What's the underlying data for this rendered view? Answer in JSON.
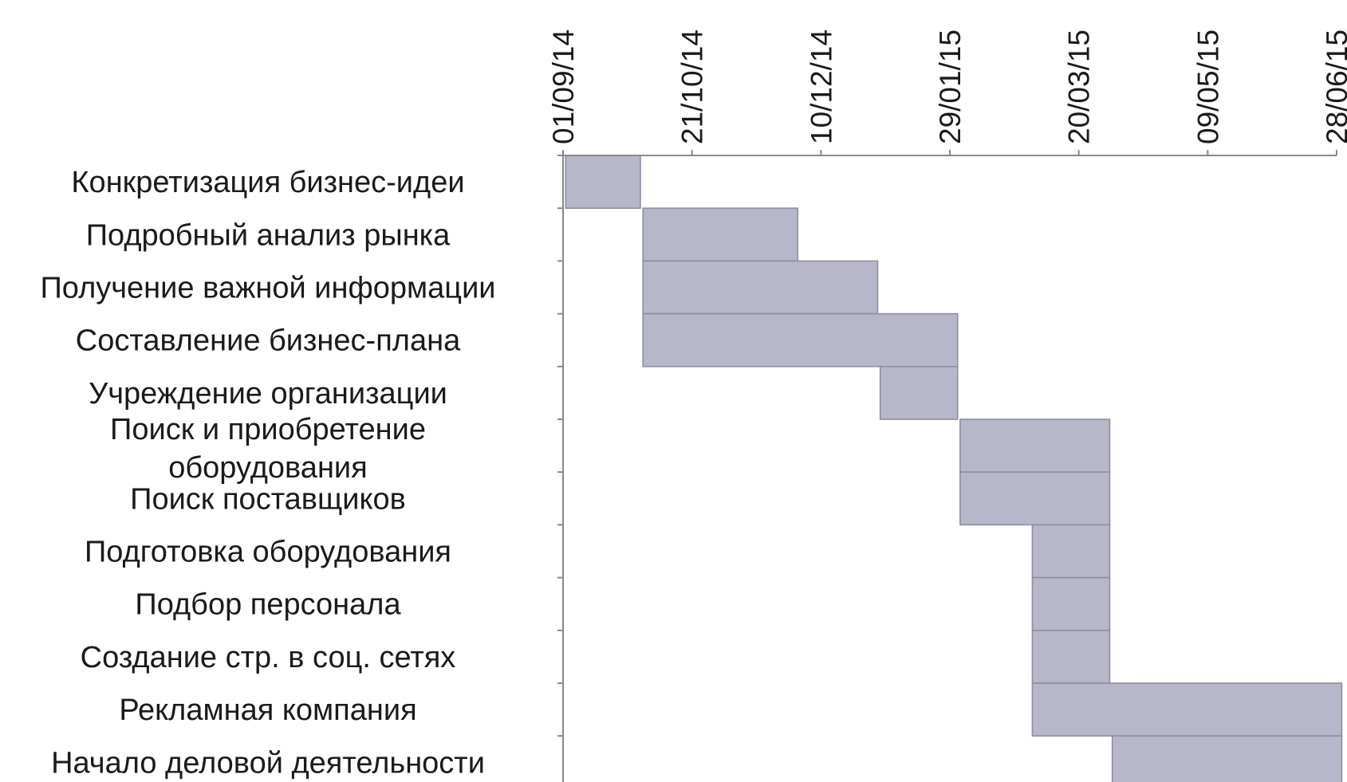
{
  "chart_data": {
    "type": "gantt",
    "title": "",
    "xlabel": "",
    "ylabel": "",
    "x_axis_position": "top",
    "x_tick_labels": [
      "01/09/14",
      "21/10/14",
      "10/12/14",
      "29/01/15",
      "20/03/15",
      "09/05/15",
      "28/06/15"
    ],
    "x_ticks": [
      "2014-09-01",
      "2014-10-21",
      "2014-12-10",
      "2015-01-29",
      "2015-03-20",
      "2015-05-09",
      "2015-06-28"
    ],
    "xlim": [
      "2014-09-01",
      "2015-06-28"
    ],
    "grid": false,
    "bar_color": "#b6b7ca",
    "bar_edge_color": "#8e8e9e",
    "axis_color": "#888888",
    "tasks": [
      {
        "name": "Конкретизация бизнес-идеи",
        "start": "2014-09-02",
        "end": "2014-10-01"
      },
      {
        "name": "Подробный анализ рынка",
        "start": "2014-10-02",
        "end": "2014-12-01"
      },
      {
        "name": "Получение важной информации",
        "start": "2014-10-02",
        "end": "2015-01-01"
      },
      {
        "name": "Составление бизнес-плана",
        "start": "2014-10-02",
        "end": "2015-02-01"
      },
      {
        "name": "Учреждение организации",
        "start": "2015-01-02",
        "end": "2015-02-01"
      },
      {
        "name": "Поиск и приобретение оборудования",
        "start": "2015-02-02",
        "end": "2015-04-01"
      },
      {
        "name": "Поиск поставщиков",
        "start": "2015-02-02",
        "end": "2015-04-01"
      },
      {
        "name": "Подготовка оборудования",
        "start": "2015-03-02",
        "end": "2015-04-01"
      },
      {
        "name": "Подбор персонала",
        "start": "2015-03-02",
        "end": "2015-04-01"
      },
      {
        "name": "Создание стр. в соц. сетях",
        "start": "2015-03-02",
        "end": "2015-04-01"
      },
      {
        "name": "Рекламная компания",
        "start": "2015-03-02",
        "end": "2015-06-30"
      },
      {
        "name": "Начало деловой деятельности",
        "start": "2015-04-02",
        "end": "2015-06-30"
      }
    ]
  }
}
